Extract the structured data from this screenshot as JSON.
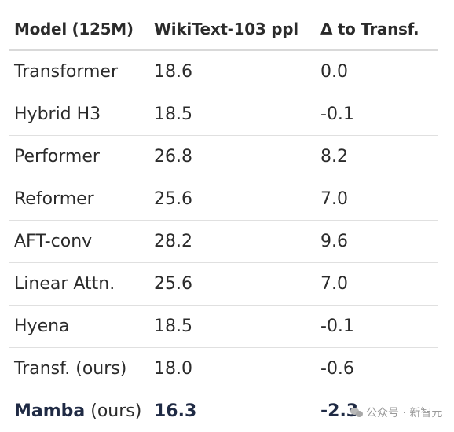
{
  "table": {
    "headers": [
      "Model (125M)",
      "WikiText-103 ppl",
      "Δ to Transf."
    ],
    "rows": [
      {
        "model": "Transformer",
        "ppl": "18.6",
        "delta": "0.0"
      },
      {
        "model": "Hybrid H3",
        "ppl": "18.5",
        "delta": "-0.1"
      },
      {
        "model": "Performer",
        "ppl": "26.8",
        "delta": "8.2"
      },
      {
        "model": "Reformer",
        "ppl": "25.6",
        "delta": "7.0"
      },
      {
        "model": "AFT-conv",
        "ppl": "28.2",
        "delta": "9.6"
      },
      {
        "model": "Linear Attn.",
        "ppl": "25.6",
        "delta": "7.0"
      },
      {
        "model": "Hyena",
        "ppl": "18.5",
        "delta": "-0.1"
      },
      {
        "model": "Transf. (ours)",
        "ppl": "18.0",
        "delta": "-0.6"
      }
    ],
    "highlight_row": {
      "model_name": "Mamba",
      "model_suffix": " (ours)",
      "ppl": "16.3",
      "delta": "-2.3"
    }
  },
  "watermark": {
    "text": "公众号 · 新智元",
    "icon": "wechat-icon"
  }
}
